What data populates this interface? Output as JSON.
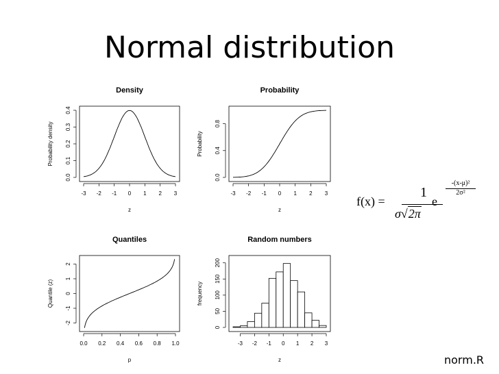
{
  "slide": {
    "title": "Normal distribution",
    "footer": "norm.R"
  },
  "formula": {
    "lhs": "f(x) =",
    "numerator": "1",
    "denominator_sigma": "σ",
    "denominator_sqrt_arg": "2π",
    "base": "e",
    "exponent_numerator": "-(x-μ)²",
    "exponent_denominator": "2σ²"
  },
  "chart_data": [
    {
      "id": "density",
      "type": "line",
      "title": "Density",
      "xlabel": "z",
      "ylabel": "Probability density",
      "xlim": [
        -3,
        3
      ],
      "ylim": [
        0,
        0.4
      ],
      "xticks": [
        -3,
        -2,
        -1,
        0,
        1,
        2,
        3
      ],
      "yticks": [
        "0.0",
        "0.1",
        "0.2",
        "0.3",
        "0.4"
      ],
      "curve": "normal_pdf",
      "x": [
        -3,
        -2.5,
        -2,
        -1.5,
        -1,
        -0.5,
        0,
        0.5,
        1,
        1.5,
        2,
        2.5,
        3
      ],
      "y": [
        0.004,
        0.018,
        0.054,
        0.13,
        0.242,
        0.352,
        0.399,
        0.352,
        0.242,
        0.13,
        0.054,
        0.018,
        0.004
      ]
    },
    {
      "id": "probability",
      "type": "line",
      "title": "Probability",
      "xlabel": "z",
      "ylabel": "Probability",
      "xlim": [
        -3,
        3
      ],
      "ylim": [
        0,
        1
      ],
      "xticks": [
        -3,
        -2,
        -1,
        0,
        1,
        2,
        3
      ],
      "yticks": [
        "0.0",
        "0.4",
        "0.8"
      ],
      "curve": "normal_cdf",
      "x": [
        -3,
        -2.5,
        -2,
        -1.5,
        -1,
        -0.5,
        0,
        0.5,
        1,
        1.5,
        2,
        2.5,
        3
      ],
      "y": [
        0.001,
        0.006,
        0.023,
        0.067,
        0.159,
        0.309,
        0.5,
        0.691,
        0.841,
        0.933,
        0.977,
        0.994,
        0.999
      ]
    },
    {
      "id": "quantiles",
      "type": "line",
      "title": "Quantiles",
      "xlabel": "p",
      "ylabel": "Quantile (z)",
      "xlim": [
        0,
        1
      ],
      "ylim": [
        -2.3,
        2.3
      ],
      "xticks": [
        "0.0",
        "0.2",
        "0.4",
        "0.6",
        "0.8",
        "1.0"
      ],
      "yticks": [
        -2,
        -1,
        0,
        1,
        2
      ],
      "curve": "normal_quantile",
      "x": [
        0.01,
        0.05,
        0.1,
        0.2,
        0.3,
        0.4,
        0.5,
        0.6,
        0.7,
        0.8,
        0.9,
        0.95,
        0.99
      ],
      "y": [
        -2.33,
        -1.64,
        -1.28,
        -0.84,
        -0.52,
        -0.25,
        0,
        0.25,
        0.52,
        0.84,
        1.28,
        1.64,
        2.33
      ]
    },
    {
      "id": "random",
      "type": "bar",
      "title": "Random numbers",
      "xlabel": "z",
      "ylabel": "frequency",
      "xlim": [
        -3.5,
        3
      ],
      "ylim": [
        0,
        210
      ],
      "xticks": [
        -3,
        -2,
        -1,
        0,
        1,
        2,
        3
      ],
      "yticks": [
        0,
        50,
        100,
        150,
        200
      ],
      "bin_width": 0.5,
      "bins": [
        -3.5,
        -3,
        -2.5,
        -2,
        -1.5,
        -1,
        -0.5,
        0,
        0.5,
        1,
        1.5,
        2,
        2.5
      ],
      "values": [
        2,
        5,
        18,
        44,
        75,
        152,
        172,
        198,
        145,
        110,
        45,
        22,
        6
      ]
    }
  ]
}
